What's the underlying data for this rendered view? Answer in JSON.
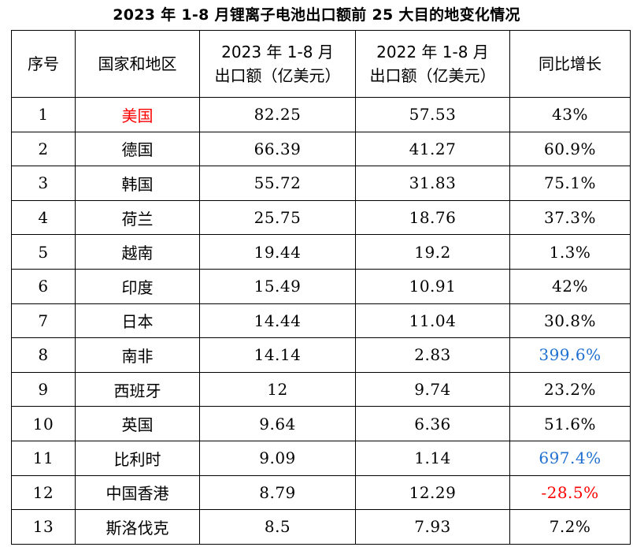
{
  "title": "2023 年 1-8 月锂离子电池出口额前 25 大目的地变化情况",
  "table": {
    "headers": {
      "seq": "序号",
      "region": "国家和地区",
      "y2023_line1": "2023 年 1-8 月",
      "y2023_line2": "出口额（亿美元）",
      "y2022_line1": "2022 年 1-8 月",
      "y2022_line2": "出口额（亿美元）",
      "yoy": "同比增长"
    },
    "rows": [
      {
        "seq": "1",
        "region": "美国",
        "v2023": "82.25",
        "v2022": "57.53",
        "yoy": "43%",
        "region_color": "#ff0000",
        "yoy_color": "#000000"
      },
      {
        "seq": "2",
        "region": "德国",
        "v2023": "66.39",
        "v2022": "41.27",
        "yoy": "60.9%",
        "region_color": "#000000",
        "yoy_color": "#000000"
      },
      {
        "seq": "3",
        "region": "韩国",
        "v2023": "55.72",
        "v2022": "31.83",
        "yoy": "75.1%",
        "region_color": "#000000",
        "yoy_color": "#000000"
      },
      {
        "seq": "4",
        "region": "荷兰",
        "v2023": "25.75",
        "v2022": "18.76",
        "yoy": "37.3%",
        "region_color": "#000000",
        "yoy_color": "#000000"
      },
      {
        "seq": "5",
        "region": "越南",
        "v2023": "19.44",
        "v2022": "19.2",
        "yoy": "1.3%",
        "region_color": "#000000",
        "yoy_color": "#000000"
      },
      {
        "seq": "6",
        "region": "印度",
        "v2023": "15.49",
        "v2022": "10.91",
        "yoy": "42%",
        "region_color": "#000000",
        "yoy_color": "#000000"
      },
      {
        "seq": "7",
        "region": "日本",
        "v2023": "14.44",
        "v2022": "11.04",
        "yoy": "30.8%",
        "region_color": "#000000",
        "yoy_color": "#000000"
      },
      {
        "seq": "8",
        "region": "南非",
        "v2023": "14.14",
        "v2022": "2.83",
        "yoy": "399.6%",
        "region_color": "#000000",
        "yoy_color": "#1f6fd1"
      },
      {
        "seq": "9",
        "region": "西班牙",
        "v2023": "12",
        "v2022": "9.74",
        "yoy": "23.2%",
        "region_color": "#000000",
        "yoy_color": "#000000"
      },
      {
        "seq": "10",
        "region": "英国",
        "v2023": "9.64",
        "v2022": "6.36",
        "yoy": "51.6%",
        "region_color": "#000000",
        "yoy_color": "#000000"
      },
      {
        "seq": "11",
        "region": "比利时",
        "v2023": "9.09",
        "v2022": "1.14",
        "yoy": "697.4%",
        "region_color": "#000000",
        "yoy_color": "#1f6fd1"
      },
      {
        "seq": "12",
        "region": "中国香港",
        "v2023": "8.79",
        "v2022": "12.29",
        "yoy": "-28.5%",
        "region_color": "#000000",
        "yoy_color": "#ff0000"
      },
      {
        "seq": "13",
        "region": "斯洛伐克",
        "v2023": "8.5",
        "v2022": "7.93",
        "yoy": "7.2%",
        "region_color": "#000000",
        "yoy_color": "#000000"
      }
    ]
  }
}
